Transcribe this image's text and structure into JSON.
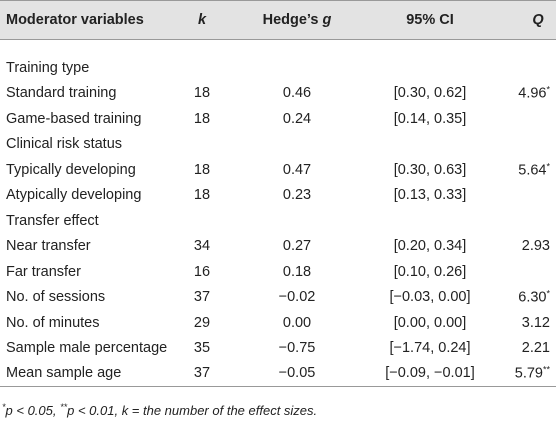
{
  "table": {
    "header": [
      "Moderator variables",
      "k",
      [
        "Hedge’s",
        "g"
      ],
      "95% CI",
      "Q"
    ],
    "rows": [
      [
        "Training type"
      ],
      [
        "Standard training",
        "18",
        "0.46",
        "[0.30, 0.62]",
        [
          "4.96",
          "*"
        ]
      ],
      [
        "Game-based training",
        "18",
        "0.24",
        "[0.14, 0.35]"
      ],
      [
        "Clinical risk status"
      ],
      [
        "Typically developing",
        "18",
        "0.47",
        "[0.30, 0.63]",
        [
          "5.64",
          "*"
        ]
      ],
      [
        "Atypically developing",
        "18",
        "0.23",
        "[0.13, 0.33]"
      ],
      [
        "Transfer effect"
      ],
      [
        "Near transfer",
        "34",
        "0.27",
        "[0.20, 0.34]",
        [
          "2.93"
        ]
      ],
      [
        "Far transfer",
        "16",
        "0.18",
        "[0.10, 0.26]"
      ],
      [
        "No. of sessions",
        "37",
        "−0.02",
        "[−0.03, 0.00]",
        [
          "6.30",
          "*"
        ]
      ],
      [
        "No. of minutes",
        "29",
        "0.00",
        "[0.00, 0.00]",
        [
          "3.12"
        ]
      ],
      [
        "Sample male percentage",
        "35",
        "−0.75",
        "[−1.74, 0.24]",
        [
          "2.21"
        ]
      ],
      [
        "Mean sample age",
        "37",
        "−0.05",
        "[−0.09, −0.01]",
        [
          "5.79",
          "**"
        ]
      ]
    ],
    "footnote": [
      "*",
      "p",
      " < 0.05, ",
      "**",
      "p",
      " < 0.01, ",
      "k",
      " = the number of the effect sizes."
    ]
  }
}
